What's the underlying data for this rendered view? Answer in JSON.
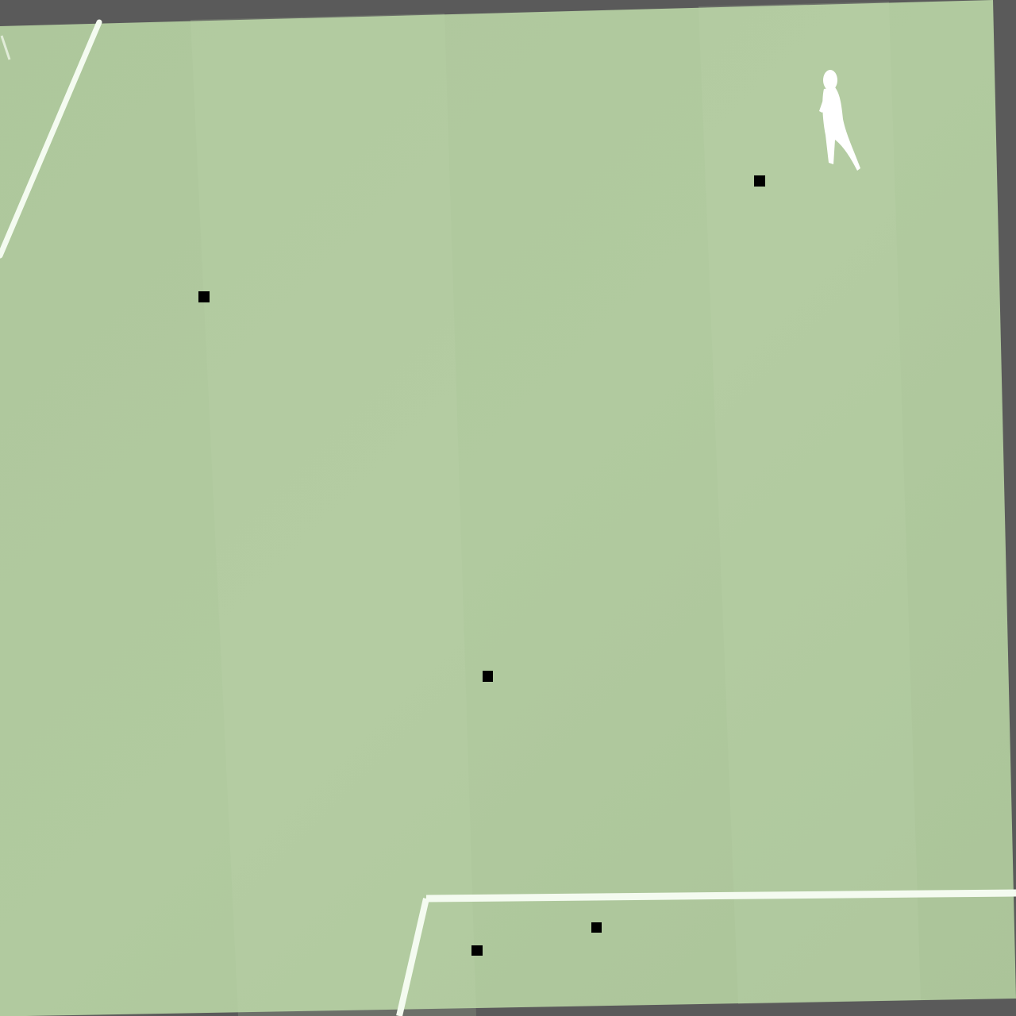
{
  "scene": {
    "description_free": true,
    "colors": {
      "border": "#5a5a5a",
      "pitch_base": "#aec79c",
      "pitch_light": "#b7d1a6",
      "pitch_dark": "#a6bf94",
      "line": "#f4fbf0",
      "marker": "#000000",
      "player": "#ffffff"
    },
    "markers": [
      {
        "id": "marker-1"
      },
      {
        "id": "marker-2"
      },
      {
        "id": "marker-3"
      },
      {
        "id": "marker-4"
      },
      {
        "id": "marker-5"
      }
    ]
  }
}
